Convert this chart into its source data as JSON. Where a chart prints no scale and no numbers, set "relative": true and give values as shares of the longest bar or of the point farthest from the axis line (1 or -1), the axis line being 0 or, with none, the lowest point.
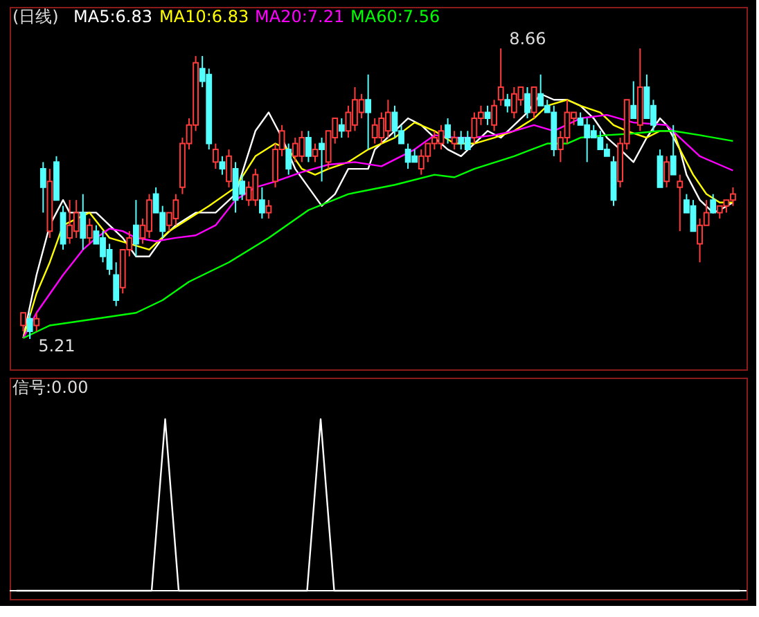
{
  "chart_data": [
    {
      "type": "candlestick",
      "title": "(日线)",
      "categories": [
        null,
        null,
        null,
        null,
        null,
        null,
        null,
        null,
        null,
        null,
        null,
        null,
        null,
        null,
        null,
        null,
        null,
        null,
        null,
        null,
        null,
        null,
        null,
        null,
        null,
        null,
        null,
        null,
        null,
        null,
        null,
        null,
        null,
        null,
        null,
        null,
        null,
        null,
        null,
        null,
        null,
        null,
        null,
        null,
        null,
        null,
        null,
        null,
        null,
        null,
        null,
        null,
        null,
        null,
        null,
        null,
        null,
        null,
        null,
        null,
        null,
        null,
        null,
        null,
        null,
        null,
        null,
        null,
        null,
        null,
        null,
        null,
        null,
        null,
        null,
        null,
        null,
        null,
        null,
        null,
        null,
        null,
        null,
        null,
        null,
        null,
        null,
        null,
        null,
        null,
        null,
        null,
        null,
        null,
        null,
        null,
        null,
        null,
        null,
        null,
        null,
        null,
        null,
        null,
        null,
        null,
        null,
        null
      ],
      "ohlc": [
        [
          5.37,
          5.52,
          5.3,
          5.52
        ],
        [
          5.45,
          5.52,
          5.21,
          5.3
        ],
        [
          5.37,
          5.52,
          5.3,
          5.45
        ],
        [
          7.23,
          7.31,
          6.71,
          7.01
        ],
        [
          6.49,
          7.23,
          6.41,
          7.08
        ],
        [
          7.31,
          7.38,
          6.86,
          6.86
        ],
        [
          6.71,
          6.79,
          6.27,
          6.34
        ],
        [
          6.41,
          6.86,
          6.34,
          6.56
        ],
        [
          6.49,
          6.86,
          6.41,
          6.71
        ],
        [
          6.71,
          6.93,
          6.27,
          6.41
        ],
        [
          6.41,
          6.64,
          6.34,
          6.56
        ],
        [
          6.49,
          6.56,
          6.34,
          6.34
        ],
        [
          6.41,
          6.49,
          6.12,
          6.19
        ],
        [
          6.27,
          6.34,
          5.97,
          6.04
        ],
        [
          5.97,
          6.12,
          5.6,
          5.67
        ],
        [
          5.82,
          6.27,
          5.75,
          6.27
        ],
        [
          6.27,
          6.49,
          6.19,
          6.41
        ],
        [
          6.56,
          6.86,
          6.19,
          6.34
        ],
        [
          6.41,
          6.64,
          6.34,
          6.56
        ],
        [
          6.49,
          6.93,
          6.41,
          6.86
        ],
        [
          6.93,
          7.01,
          6.71,
          6.71
        ],
        [
          6.71,
          6.79,
          6.41,
          6.49
        ],
        [
          6.56,
          6.71,
          6.49,
          6.71
        ],
        [
          6.64,
          6.93,
          6.56,
          6.86
        ],
        [
          7.01,
          7.6,
          6.93,
          7.53
        ],
        [
          7.53,
          7.83,
          7.46,
          7.75
        ],
        [
          7.75,
          8.57,
          7.68,
          8.49
        ],
        [
          8.42,
          8.57,
          8.2,
          8.27
        ],
        [
          8.35,
          8.42,
          7.46,
          7.53
        ],
        [
          7.31,
          7.53,
          7.23,
          7.46
        ],
        [
          7.31,
          7.38,
          7.16,
          7.23
        ],
        [
          7.08,
          7.46,
          7.01,
          7.38
        ],
        [
          7.23,
          7.31,
          6.71,
          6.86
        ],
        [
          7.08,
          7.16,
          6.86,
          6.93
        ],
        [
          6.86,
          7.08,
          6.79,
          7.01
        ],
        [
          6.86,
          7.23,
          6.79,
          7.16
        ],
        [
          6.86,
          7.01,
          6.64,
          6.71
        ],
        [
          6.71,
          6.86,
          6.64,
          6.79
        ],
        [
          7.08,
          7.53,
          7.01,
          7.46
        ],
        [
          7.46,
          7.75,
          7.38,
          7.68
        ],
        [
          7.46,
          7.53,
          7.16,
          7.23
        ],
        [
          7.38,
          7.6,
          7.31,
          7.53
        ],
        [
          7.38,
          7.68,
          7.31,
          7.6
        ],
        [
          7.6,
          7.68,
          7.31,
          7.38
        ],
        [
          7.38,
          7.53,
          7.31,
          7.46
        ],
        [
          7.53,
          7.6,
          7.08,
          7.46
        ],
        [
          7.31,
          7.68,
          7.23,
          7.68
        ],
        [
          7.6,
          7.83,
          7.53,
          7.83
        ],
        [
          7.75,
          7.83,
          7.6,
          7.68
        ],
        [
          7.68,
          7.98,
          7.6,
          7.9
        ],
        [
          7.75,
          8.2,
          7.68,
          8.05
        ],
        [
          7.9,
          8.12,
          7.83,
          8.05
        ],
        [
          8.05,
          8.35,
          7.46,
          7.9
        ],
        [
          7.6,
          7.83,
          7.53,
          7.75
        ],
        [
          7.6,
          7.9,
          7.53,
          7.83
        ],
        [
          7.68,
          8.05,
          7.6,
          7.9
        ],
        [
          7.9,
          7.98,
          7.6,
          7.68
        ],
        [
          7.68,
          7.75,
          7.53,
          7.53
        ],
        [
          7.46,
          7.53,
          7.23,
          7.31
        ],
        [
          7.38,
          7.46,
          7.31,
          7.31
        ],
        [
          7.23,
          7.46,
          7.16,
          7.38
        ],
        [
          7.38,
          7.53,
          7.31,
          7.53
        ],
        [
          7.53,
          7.68,
          7.46,
          7.6
        ],
        [
          7.53,
          7.75,
          7.46,
          7.68
        ],
        [
          7.75,
          7.83,
          7.53,
          7.6
        ],
        [
          7.53,
          7.68,
          7.46,
          7.6
        ],
        [
          7.6,
          7.68,
          7.46,
          7.53
        ],
        [
          7.6,
          7.68,
          7.46,
          7.46
        ],
        [
          7.6,
          7.9,
          7.53,
          7.83
        ],
        [
          7.83,
          7.98,
          7.75,
          7.9
        ],
        [
          7.9,
          7.98,
          7.75,
          7.83
        ],
        [
          7.75,
          8.05,
          7.68,
          7.98
        ],
        [
          8.05,
          8.66,
          7.98,
          8.2
        ],
        [
          8.05,
          8.12,
          7.9,
          7.98
        ],
        [
          7.9,
          8.2,
          7.83,
          8.12
        ],
        [
          8.05,
          8.2,
          7.98,
          8.2
        ],
        [
          8.12,
          8.2,
          7.83,
          7.9
        ],
        [
          7.9,
          8.2,
          7.83,
          8.2
        ],
        [
          8.12,
          8.35,
          7.98,
          7.98
        ],
        [
          7.98,
          8.05,
          7.9,
          7.9
        ],
        [
          7.9,
          7.98,
          7.38,
          7.46
        ],
        [
          7.46,
          7.68,
          7.31,
          7.6
        ],
        [
          7.6,
          8.05,
          7.53,
          7.9
        ],
        [
          7.83,
          7.9,
          7.75,
          7.9
        ],
        [
          7.83,
          7.9,
          7.75,
          7.75
        ],
        [
          7.75,
          7.83,
          7.31,
          7.6
        ],
        [
          7.68,
          7.75,
          7.6,
          7.6
        ],
        [
          7.6,
          7.68,
          7.46,
          7.46
        ],
        [
          7.46,
          7.53,
          7.38,
          7.38
        ],
        [
          7.31,
          7.38,
          6.79,
          6.86
        ],
        [
          7.08,
          7.6,
          7.01,
          7.53
        ],
        [
          7.53,
          8.05,
          7.46,
          8.05
        ],
        [
          7.98,
          8.27,
          7.83,
          7.83
        ],
        [
          7.75,
          8.66,
          7.68,
          8.2
        ],
        [
          8.2,
          8.35,
          7.83,
          7.83
        ],
        [
          7.98,
          8.05,
          7.68,
          7.75
        ],
        [
          7.38,
          7.46,
          7.01,
          7.01
        ],
        [
          7.08,
          7.38,
          7.01,
          7.31
        ],
        [
          7.38,
          7.75,
          7.16,
          7.16
        ],
        [
          7.01,
          7.16,
          6.49,
          7.08
        ],
        [
          6.86,
          6.93,
          6.71,
          6.71
        ],
        [
          6.79,
          6.86,
          6.49,
          6.49
        ],
        [
          6.34,
          6.64,
          6.12,
          6.56
        ],
        [
          6.56,
          6.86,
          6.56,
          6.71
        ],
        [
          6.86,
          6.93,
          6.71,
          6.71
        ],
        [
          6.71,
          6.79,
          6.64,
          6.79
        ],
        [
          6.79,
          6.86,
          6.71,
          6.86
        ],
        [
          6.86,
          7.01,
          6.79,
          6.93
        ]
      ],
      "series": [
        {
          "name": "MA5:6.83",
          "type": "line",
          "color": "#ffffff",
          "values": [
            5.22,
            null,
            5.97,
            null,
            6.56,
            null,
            6.86,
            6.71,
            null,
            6.71,
            null,
            6.71,
            null,
            6.56,
            null,
            6.41,
            null,
            6.19,
            null,
            6.19,
            null,
            6.41,
            null,
            6.56,
            null,
            null,
            6.71,
            null,
            null,
            6.71,
            null,
            null,
            6.93,
            null,
            null,
            7.68,
            null,
            7.9,
            null,
            7.6,
            null,
            7.23,
            null,
            7.01,
            null,
            6.79,
            null,
            6.93,
            null,
            7.23,
            null,
            null,
            7.23,
            7.46,
            null,
            null,
            7.68,
            null,
            7.83,
            null,
            7.75,
            null,
            7.6,
            null,
            7.46,
            null,
            7.38,
            null,
            7.53,
            null,
            7.68,
            null,
            7.6,
            null,
            7.75,
            null,
            7.9,
            null,
            8.12,
            null,
            8.05,
            null,
            8.05,
            null,
            7.98,
            null,
            7.83,
            null,
            7.6,
            null,
            7.46,
            null,
            7.31,
            null,
            7.6,
            null,
            7.83,
            7.75,
            null,
            7.46,
            7.16,
            null,
            6.86,
            null,
            6.71,
            6.74,
            null,
            6.83
          ]
        },
        {
          "name": "MA10:6.83",
          "type": "line",
          "color": "#ffff00",
          "values": [
            5.22,
            null,
            5.75,
            null,
            6.12,
            null,
            6.56,
            null,
            null,
            null,
            6.71,
            null,
            null,
            6.41,
            null,
            null,
            6.34,
            null,
            null,
            6.27,
            null,
            null,
            6.49,
            null,
            null,
            6.64,
            null,
            null,
            6.79,
            null,
            null,
            null,
            7.01,
            null,
            null,
            7.38,
            null,
            null,
            7.53,
            null,
            7.46,
            null,
            7.23,
            null,
            7.16,
            null,
            7.23,
            null,
            null,
            7.31,
            null,
            null,
            7.46,
            null,
            null,
            null,
            7.6,
            null,
            null,
            7.78,
            null,
            null,
            7.68,
            null,
            null,
            7.53,
            null,
            null,
            7.53,
            null,
            null,
            7.6,
            null,
            null,
            7.68,
            null,
            null,
            7.83,
            null,
            7.98,
            null,
            null,
            8.05,
            null,
            7.98,
            null,
            null,
            7.9,
            null,
            7.75,
            null,
            7.68,
            null,
            null,
            7.6,
            null,
            7.68,
            null,
            7.68,
            7.46,
            null,
            7.16,
            null,
            6.93,
            null,
            6.83,
            null,
            6.83
          ]
        },
        {
          "name": "MA20:7.21",
          "type": "line",
          "color": "#ff00ff",
          "values": [
            5.22,
            null,
            5.52,
            null,
            null,
            null,
            5.97,
            null,
            null,
            6.27,
            null,
            6.41,
            null,
            6.52,
            null,
            6.49,
            null,
            6.41,
            null,
            null,
            6.37,
            null,
            null,
            6.41,
            null,
            null,
            6.44,
            null,
            null,
            6.56,
            null,
            null,
            6.86,
            null,
            null,
            7.01,
            null,
            null,
            7.08,
            null,
            null,
            null,
            7.19,
            null,
            null,
            null,
            7.28,
            null,
            null,
            null,
            7.31,
            null,
            null,
            null,
            7.26,
            null,
            null,
            null,
            null,
            7.46,
            null,
            null,
            7.63,
            null,
            null,
            7.6,
            null,
            null,
            7.6,
            null,
            null,
            7.63,
            null,
            null,
            7.68,
            null,
            null,
            7.75,
            null,
            null,
            7.68,
            null,
            null,
            null,
            7.83,
            null,
            null,
            null,
            7.87,
            null,
            null,
            null,
            7.78,
            null,
            null,
            null,
            null,
            7.75,
            null,
            7.6,
            null,
            null,
            7.38,
            null,
            null,
            null,
            null,
            7.21
          ]
        },
        {
          "name": "MA60:7.56",
          "type": "line",
          "color": "#00ff00",
          "values": [
            5.22,
            null,
            null,
            null,
            5.37,
            null,
            null,
            null,
            null,
            null,
            null,
            5.45,
            null,
            null,
            null,
            null,
            null,
            5.52,
            null,
            null,
            null,
            5.67,
            null,
            null,
            null,
            5.89,
            null,
            null,
            null,
            null,
            null,
            6.12,
            null,
            null,
            null,
            null,
            null,
            6.41,
            null,
            null,
            null,
            null,
            null,
            6.74,
            null,
            null,
            null,
            null,
            null,
            6.93,
            null,
            null,
            null,
            null,
            null,
            null,
            7.04,
            null,
            null,
            null,
            null,
            null,
            7.16,
            null,
            null,
            7.13,
            null,
            null,
            7.23,
            null,
            null,
            null,
            null,
            null,
            7.38,
            null,
            null,
            null,
            null,
            7.53,
            null,
            null,
            7.53,
            null,
            7.6,
            null,
            null,
            null,
            7.63,
            null,
            null,
            null,
            7.65,
            null,
            null,
            null,
            7.68,
            null,
            7.68,
            null,
            null,
            null,
            7.63,
            null,
            null,
            null,
            null,
            7.56
          ]
        }
      ],
      "annotations": [
        "8.66",
        "5.21"
      ]
    },
    {
      "type": "line",
      "title": "信号:0.00",
      "relative": true,
      "categories": [
        null,
        null,
        null,
        null,
        null,
        null,
        null,
        null,
        null,
        null,
        null,
        null,
        null,
        null,
        null,
        null,
        null,
        null,
        null,
        null,
        null,
        null,
        null,
        null,
        null,
        null,
        null,
        null,
        null,
        null,
        null,
        null,
        null,
        null,
        null,
        null,
        null,
        null,
        null,
        null,
        null,
        null,
        null,
        null,
        null,
        null,
        null,
        null,
        null,
        null,
        null,
        null,
        null,
        null,
        null,
        null,
        null,
        null,
        null,
        null,
        null,
        null,
        null,
        null,
        null,
        null,
        null,
        null,
        null,
        null,
        null,
        null,
        null,
        null,
        null,
        null,
        null,
        null,
        null,
        null,
        null,
        null,
        null,
        null,
        null,
        null,
        null,
        null,
        null,
        null,
        null,
        null,
        null,
        null,
        null,
        null,
        null,
        null,
        null,
        null,
        null,
        null,
        null,
        null,
        null,
        null,
        null,
        null
      ],
      "series": [
        {
          "color": "#ffffff",
          "values": [
            0,
            0,
            0,
            0,
            0,
            0,
            0,
            0,
            0,
            0,
            0,
            0,
            0,
            0,
            0,
            0,
            0,
            0,
            0,
            0,
            0,
            0.5,
            1,
            0.5,
            0,
            0,
            0,
            0,
            0,
            0,
            0,
            0,
            0,
            0,
            0,
            0,
            0,
            0,
            0,
            0,
            0,
            0,
            0,
            0,
            0.5,
            1,
            0.5,
            0,
            0,
            0,
            0,
            0,
            0,
            0,
            0,
            0,
            0,
            0,
            0,
            0,
            0,
            0,
            0,
            0,
            0,
            0,
            0,
            0,
            0,
            0,
            0,
            0,
            0,
            0,
            0,
            0,
            0,
            0,
            0,
            0,
            0,
            0,
            0,
            0,
            0,
            0,
            0,
            0,
            0,
            0,
            0,
            0,
            0,
            0,
            0,
            0,
            0,
            0,
            0,
            0,
            0,
            0,
            0,
            0,
            0,
            0,
            0,
            0
          ]
        }
      ]
    }
  ]
}
